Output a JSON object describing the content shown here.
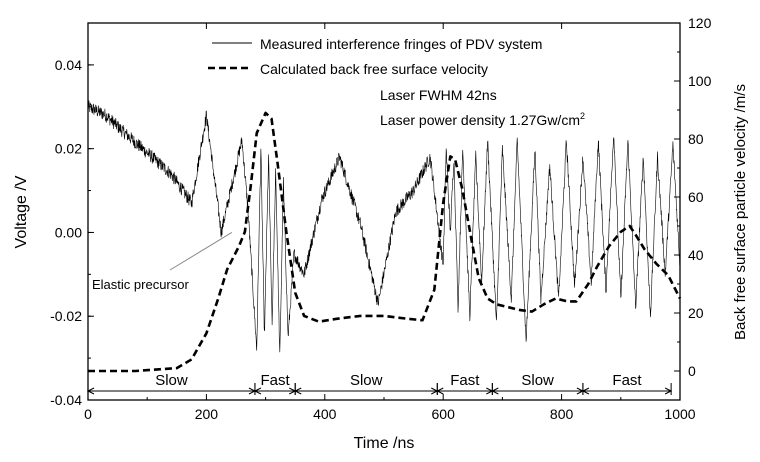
{
  "chart_data": {
    "type": "line",
    "xlabel": "Time /ns",
    "ylabel_left": "Voltage /V",
    "ylabel_right": "Back free surface particle velocity /m/s",
    "xlim": [
      0,
      1000
    ],
    "ylim_left": [
      -0.04,
      0.05
    ],
    "ylim_right": [
      -10,
      120
    ],
    "x_ticks": [
      0,
      200,
      400,
      600,
      800,
      1000
    ],
    "y_left_ticks": [
      -0.04,
      -0.02,
      0.0,
      0.02,
      0.04
    ],
    "y_left_tick_labels": [
      "-0.04",
      "-0.02",
      "0.00",
      "0.02",
      "0.04"
    ],
    "y_right_ticks": [
      0,
      20,
      40,
      60,
      80,
      100,
      120
    ],
    "grid": false,
    "legend_position": "top-right",
    "series": [
      {
        "name": "Measured interference fringes of PDV system",
        "axis": "left",
        "style": "thin-solid",
        "keyframes": [
          [
            0,
            0.03
          ],
          [
            30,
            0.028
          ],
          [
            60,
            0.024
          ],
          [
            100,
            0.019
          ],
          [
            140,
            0.014
          ],
          [
            175,
            0.007
          ],
          [
            200,
            0.028
          ],
          [
            225,
            0.0
          ],
          [
            260,
            0.022
          ],
          [
            270,
            0.006
          ],
          [
            285,
            -0.028
          ],
          [
            292,
            0.02
          ],
          [
            298,
            -0.025
          ],
          [
            305,
            0.018
          ],
          [
            311,
            -0.022
          ],
          [
            317,
            0.015
          ],
          [
            324,
            -0.03
          ],
          [
            330,
            0.012
          ],
          [
            338,
            -0.025
          ],
          [
            348,
            -0.005
          ],
          [
            365,
            -0.01
          ],
          [
            395,
            0.008
          ],
          [
            425,
            0.018
          ],
          [
            460,
            0.002
          ],
          [
            490,
            -0.017
          ],
          [
            520,
            0.005
          ],
          [
            550,
            0.01
          ],
          [
            578,
            0.018
          ],
          [
            590,
            0.004
          ],
          [
            600,
            -0.008
          ],
          [
            605,
            0.02
          ],
          [
            612,
            0.0
          ],
          [
            618,
            0.018
          ],
          [
            625,
            -0.018
          ],
          [
            633,
            0.02
          ],
          [
            645,
            -0.02
          ],
          [
            655,
            0.018
          ],
          [
            665,
            -0.012
          ],
          [
            675,
            0.022
          ],
          [
            690,
            -0.022
          ],
          [
            700,
            0.02
          ],
          [
            715,
            -0.016
          ],
          [
            725,
            0.022
          ],
          [
            740,
            -0.026
          ],
          [
            755,
            0.02
          ],
          [
            765,
            -0.016
          ],
          [
            780,
            0.016
          ],
          [
            795,
            -0.016
          ],
          [
            808,
            0.022
          ],
          [
            822,
            -0.013
          ],
          [
            836,
            0.018
          ],
          [
            850,
            -0.012
          ],
          [
            862,
            0.022
          ],
          [
            875,
            -0.014
          ],
          [
            888,
            0.024
          ],
          [
            900,
            -0.016
          ],
          [
            912,
            0.022
          ],
          [
            925,
            -0.018
          ],
          [
            938,
            0.018
          ],
          [
            950,
            -0.02
          ],
          [
            962,
            0.018
          ],
          [
            975,
            -0.01
          ],
          [
            988,
            0.021
          ],
          [
            1000,
            -0.008
          ]
        ]
      },
      {
        "name": "Calculated back free surface velocity",
        "axis": "right",
        "style": "dashed",
        "points": [
          [
            0,
            0
          ],
          [
            80,
            0
          ],
          [
            150,
            1
          ],
          [
            175,
            4
          ],
          [
            200,
            13
          ],
          [
            220,
            25
          ],
          [
            235,
            35
          ],
          [
            255,
            43
          ],
          [
            265,
            48
          ],
          [
            275,
            64
          ],
          [
            285,
            82
          ],
          [
            300,
            89
          ],
          [
            310,
            87
          ],
          [
            320,
            72
          ],
          [
            335,
            48
          ],
          [
            350,
            27
          ],
          [
            365,
            19
          ],
          [
            390,
            17
          ],
          [
            420,
            18
          ],
          [
            460,
            19
          ],
          [
            500,
            19
          ],
          [
            540,
            18
          ],
          [
            565,
            17.5
          ],
          [
            585,
            28
          ],
          [
            600,
            58
          ],
          [
            612,
            74
          ],
          [
            620,
            73
          ],
          [
            632,
            63
          ],
          [
            648,
            45
          ],
          [
            660,
            32
          ],
          [
            675,
            25
          ],
          [
            690,
            23
          ],
          [
            710,
            22
          ],
          [
            730,
            21
          ],
          [
            750,
            20.5
          ],
          [
            770,
            23
          ],
          [
            790,
            25
          ],
          [
            810,
            24
          ],
          [
            825,
            24
          ],
          [
            845,
            30
          ],
          [
            860,
            36
          ],
          [
            880,
            43
          ],
          [
            900,
            48
          ],
          [
            915,
            50
          ],
          [
            925,
            47
          ],
          [
            940,
            42
          ],
          [
            960,
            37
          ],
          [
            980,
            33
          ],
          [
            1000,
            25
          ]
        ]
      }
    ],
    "annotations": [
      {
        "text": "Laser FWHM 42ns"
      },
      {
        "text": "Laser power density 1.27Gw/cm",
        "superscript": "2"
      },
      {
        "text": "Elastic precursor",
        "arrow_to": {
          "x": 243,
          "y": 0.0
        }
      }
    ],
    "regions": [
      {
        "label": "Slow",
        "x_start": 0,
        "x_end": 282
      },
      {
        "label": "Fast",
        "x_start": 282,
        "x_end": 350
      },
      {
        "label": "Slow",
        "x_start": 350,
        "x_end": 590
      },
      {
        "label": "Fast",
        "x_start": 590,
        "x_end": 683
      },
      {
        "label": "Slow",
        "x_start": 683,
        "x_end": 836
      },
      {
        "label": "Fast",
        "x_start": 836,
        "x_end": 985
      }
    ]
  }
}
